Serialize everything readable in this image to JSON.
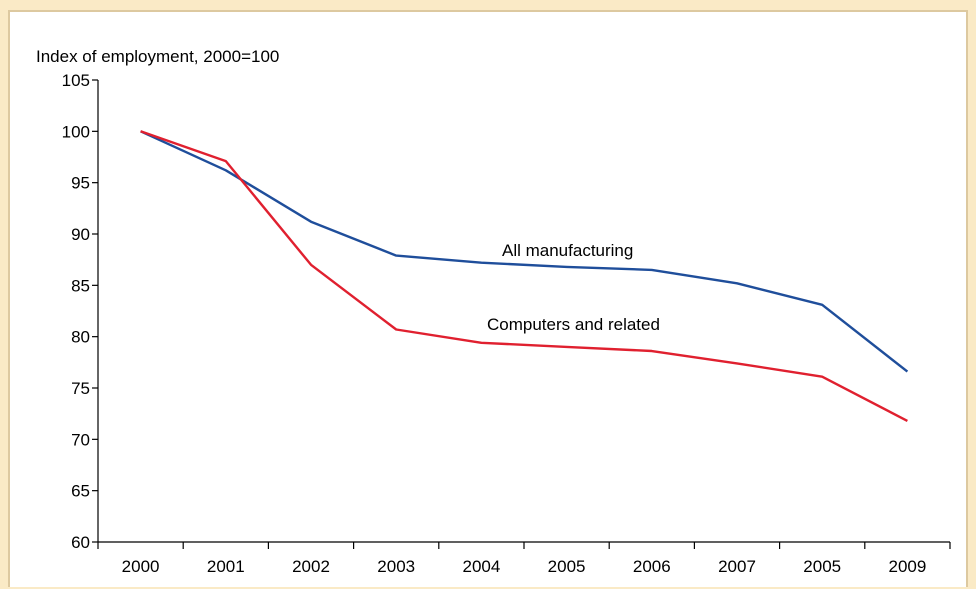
{
  "colors": {
    "background": "#faeac6",
    "frame_border": "#ddc9a0",
    "all_manufacturing": "#1f4e9b",
    "computers": "#e0202f",
    "axis": "#000000"
  },
  "chart_data": {
    "type": "line",
    "ylabel": "Index of employment, 2000=100",
    "ylim": [
      60,
      105
    ],
    "yticks": [
      60,
      65,
      70,
      75,
      80,
      85,
      90,
      95,
      100,
      105
    ],
    "categories": [
      "2000",
      "2001",
      "2002",
      "2003",
      "2004",
      "2005",
      "2006",
      "2007",
      "2005",
      "2009"
    ],
    "grid": false,
    "legend": "inline labels",
    "series": [
      {
        "name": "All manufacturing",
        "color": "#1f4e9b",
        "values": [
          100,
          96.2,
          91.2,
          87.9,
          87.2,
          86.8,
          86.5,
          85.2,
          83.1,
          76.6
        ]
      },
      {
        "name": "Computers and related",
        "color": "#e0202f",
        "values": [
          100,
          97.1,
          87.0,
          80.7,
          79.4,
          79.0,
          78.6,
          77.4,
          76.1,
          71.8
        ]
      }
    ]
  }
}
